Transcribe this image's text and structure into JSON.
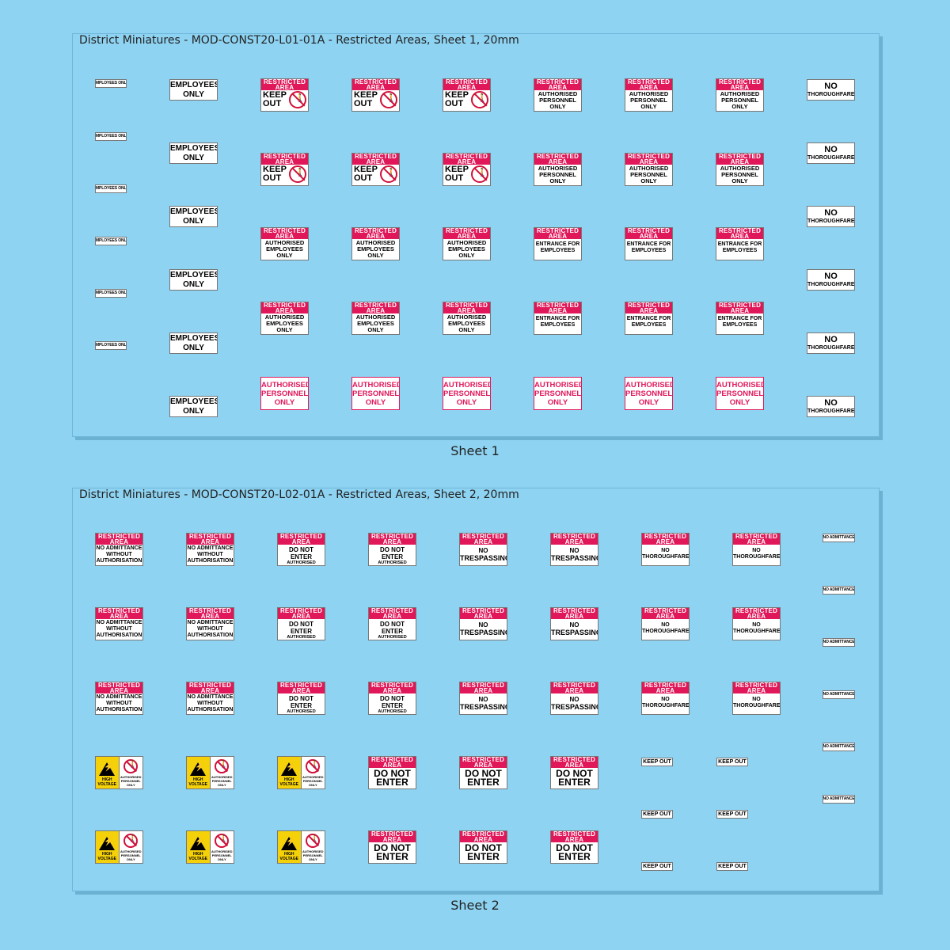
{
  "sheet1": {
    "title": "District Miniatures - MOD-CONST20-L01-01A - Restricted Areas, Sheet 1, 20mm",
    "caption": "Sheet 1",
    "employees_only_small": "EMPLOYEES ONLY",
    "employees_only_l1": "EMPLOYEES",
    "employees_only_l2": "ONLY",
    "restricted_l1": "RESTRICTED",
    "restricted_l2": "AREA",
    "keep_l1": "KEEP",
    "keep_l2": "OUT",
    "authorised_personnel": [
      "AUTHORISED",
      "PERSONNEL",
      "ONLY"
    ],
    "authorised_employees": [
      "AUTHORISED",
      "EMPLOYEES",
      "ONLY"
    ],
    "entrance_for": [
      "ENTRANCE FOR",
      "EMPLOYEES"
    ],
    "no_thoroughfare_l1": "NO",
    "no_thoroughfare_l2": "THOROUGHFARE"
  },
  "sheet2": {
    "title": "District Miniatures - MOD-CONST20-L02-01A - Restricted Areas, Sheet 2, 20mm",
    "caption": "Sheet 2",
    "restricted_l1": "RESTRICTED",
    "restricted_l2": "AREA",
    "no_admittance_without": [
      "NO ADMITTANCE",
      "WITHOUT",
      "AUTHORISATION"
    ],
    "do_not_enter_auth": [
      "DO NOT ENTER",
      "AUTHORISED",
      "PERSONNEL ONLY"
    ],
    "no_trespassing": [
      "NO",
      "TRESPASSING"
    ],
    "no_thoroughfare": [
      "NO",
      "THOROUGHFARE"
    ],
    "no_admittance_small": "NO ADMITTANCE",
    "high_voltage": [
      "HIGH",
      "VOLTAGE"
    ],
    "authorised_personnel_only": [
      "AUTHORISED",
      "PERSONNEL",
      "ONLY"
    ],
    "do_not_enter": [
      "DO NOT",
      "ENTER"
    ],
    "keep_out_small": "KEEP OUT"
  },
  "colors": {
    "background": "#8ed3f2",
    "sign_red": "#e0185a",
    "warning_yellow": "#f5d10a"
  },
  "icons": [
    "no-entry-person-icon",
    "high-voltage-warning-icon"
  ]
}
